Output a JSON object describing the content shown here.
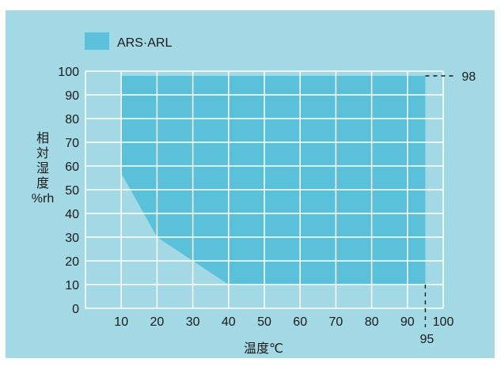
{
  "chart_data": {
    "type": "area",
    "legend": {
      "label": "ARS·ARL",
      "placement": "top-left"
    },
    "xlabel": "温度℃",
    "ylabel": [
      "相",
      "対",
      "湿",
      "度",
      "%rh"
    ],
    "xlim": [
      0,
      100
    ],
    "ylim": [
      0,
      100
    ],
    "x_ticks": [
      10,
      20,
      30,
      40,
      50,
      60,
      70,
      80,
      90,
      100
    ],
    "y_ticks": [
      0,
      10,
      20,
      30,
      40,
      50,
      60,
      70,
      80,
      90,
      100
    ],
    "grid": true,
    "series": [
      {
        "name": "ARS·ARL",
        "region": [
          [
            10,
            57
          ],
          [
            20,
            30
          ],
          [
            30,
            20
          ],
          [
            40,
            10
          ],
          [
            95,
            10
          ],
          [
            95,
            98
          ],
          [
            10,
            98
          ]
        ]
      }
    ],
    "annotations": [
      {
        "text": "98",
        "x": 95,
        "y": 98,
        "kind": "limit-y"
      },
      {
        "text": "95",
        "x": 95,
        "y": 0,
        "kind": "limit-x"
      }
    ]
  },
  "colors": {
    "background": "#a3d9e5",
    "fill": "#5bc1da",
    "grid": "#ffffff",
    "text": "#1a1a1a"
  }
}
